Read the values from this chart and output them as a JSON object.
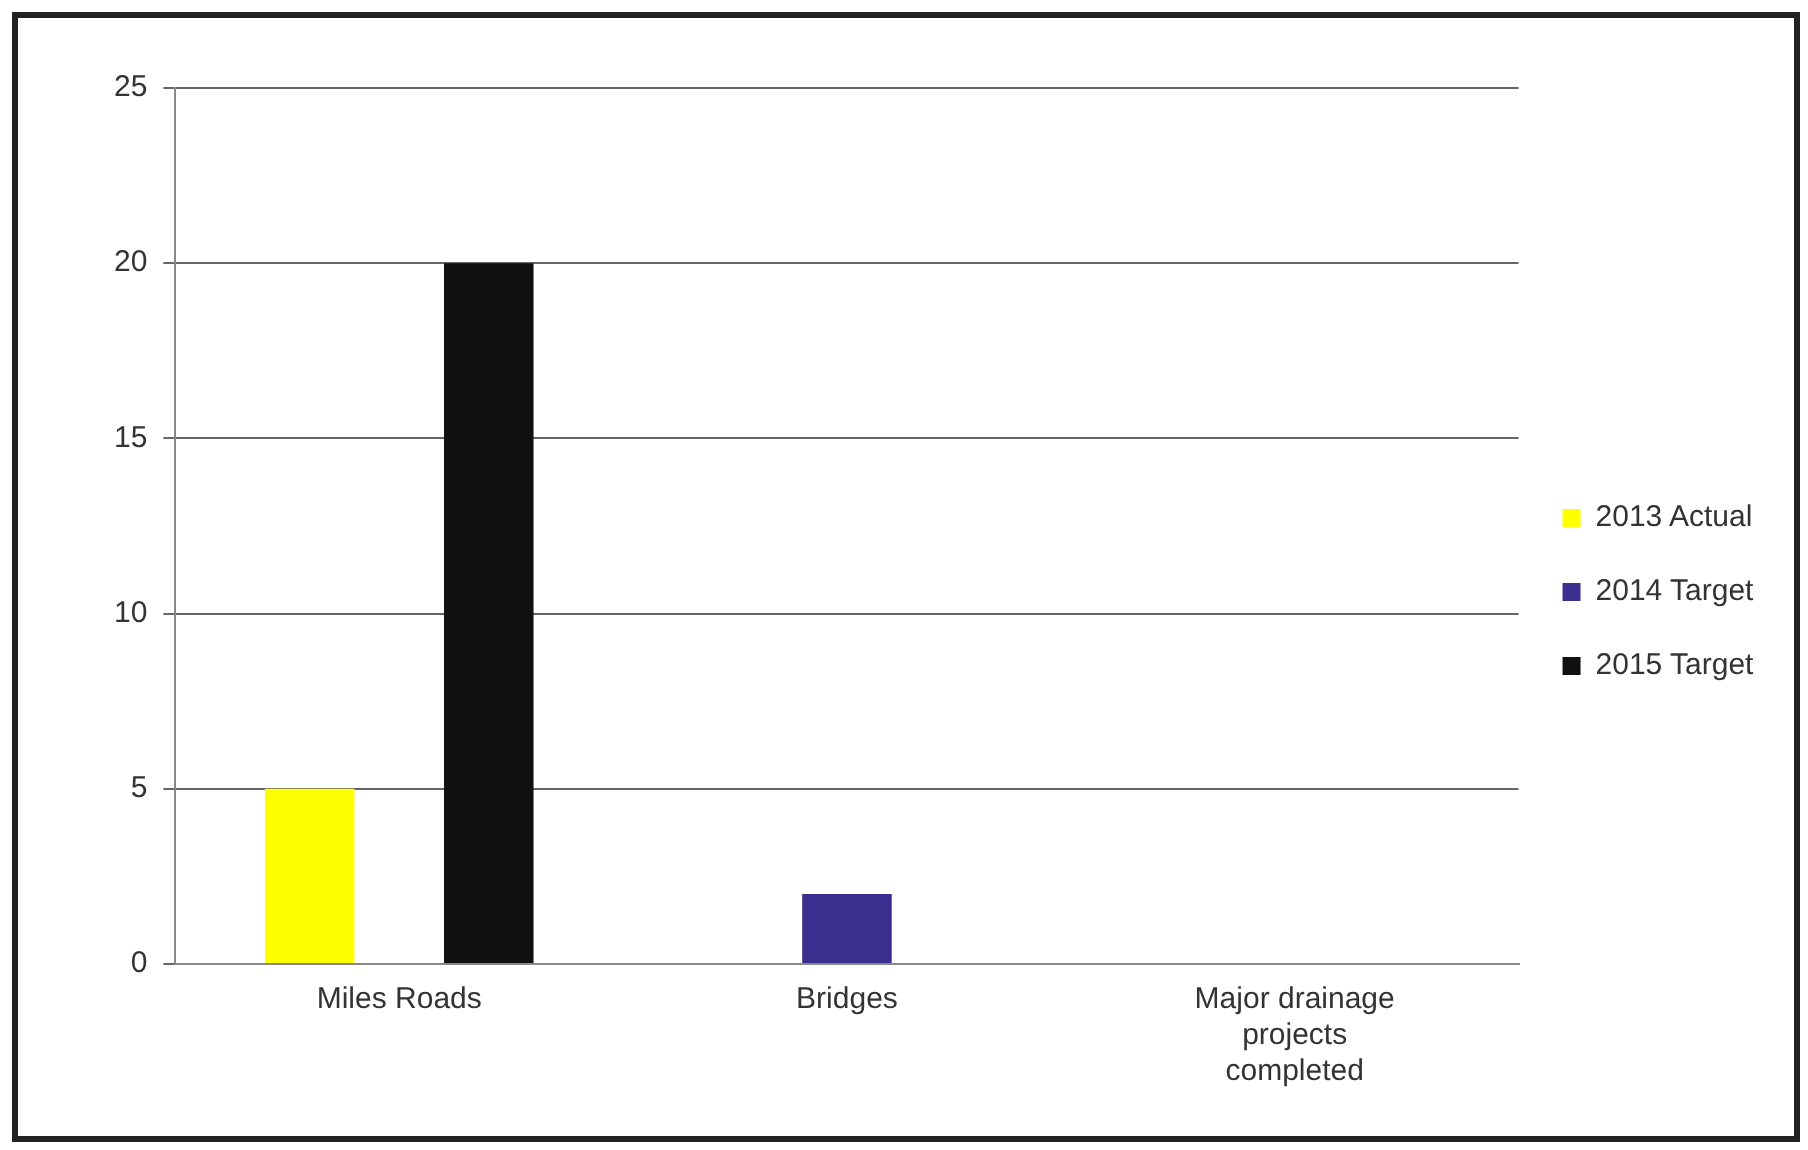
{
  "chart_data": {
    "type": "bar",
    "categories": [
      "Miles Roads",
      "Bridges",
      "Major drainage projects completed"
    ],
    "series": [
      {
        "name": "2013 Actual",
        "color": "#ffff00",
        "values": [
          5,
          0,
          0
        ]
      },
      {
        "name": "2014 Target",
        "color": "#3b2f8f",
        "values": [
          0,
          2,
          0
        ]
      },
      {
        "name": "2015 Target",
        "color": "#111111",
        "values": [
          20,
          0,
          0
        ]
      }
    ],
    "ylim": [
      0,
      25
    ],
    "yticks": [
      0,
      5,
      10,
      15,
      20,
      25
    ],
    "grid": "y",
    "legend": "right"
  }
}
